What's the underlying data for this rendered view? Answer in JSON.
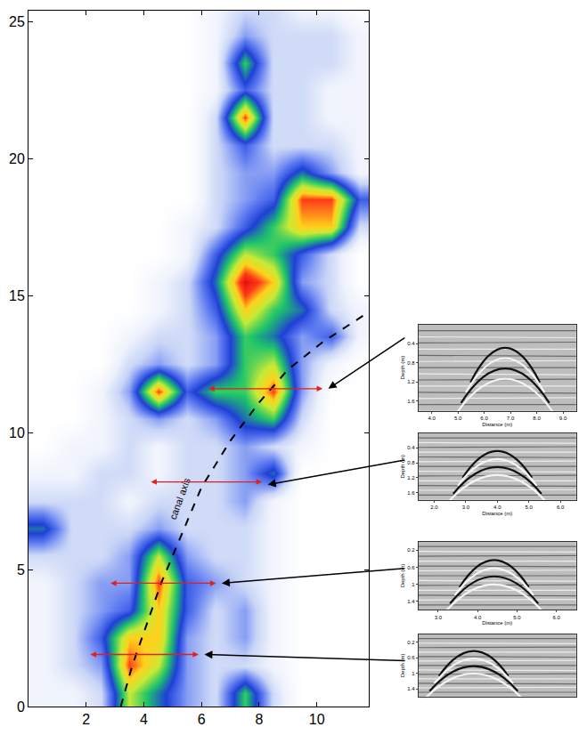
{
  "chart_data": [
    {
      "type": "heatmap",
      "xlim": [
        0,
        11.8
      ],
      "ylim": [
        0,
        25.4
      ],
      "xticks": [
        2,
        4,
        6,
        8,
        10
      ],
      "yticks": [
        0,
        5,
        10,
        15,
        20,
        25
      ],
      "zlim": [
        0,
        1
      ],
      "x": [
        0.5,
        1.5,
        2.5,
        3.5,
        4.5,
        5.5,
        6.5,
        7.5,
        8.5,
        9.5,
        10.5,
        11.5
      ],
      "y": [
        0.5,
        1.5,
        2.5,
        3.5,
        4.5,
        5.5,
        6.5,
        7.5,
        8.5,
        9.5,
        10.5,
        11.5,
        12.5,
        13.5,
        14.5,
        15.5,
        16.5,
        17.5,
        18.5,
        19.5,
        20.5,
        21.5,
        22.5,
        23.5,
        24.5,
        25.5
      ],
      "z": [
        [
          0.1,
          0.1,
          0.2,
          0.7,
          0.5,
          0.3,
          0.2,
          0.6,
          0.2,
          0,
          0,
          0
        ],
        [
          0.1,
          0.2,
          0.3,
          0.9,
          0.7,
          0.3,
          0.2,
          0.2,
          0.1,
          0,
          0,
          0
        ],
        [
          0.1,
          0.2,
          0.4,
          0.8,
          0.8,
          0.3,
          0.2,
          0.3,
          0.1,
          0,
          0,
          0
        ],
        [
          0.1,
          0.2,
          0.3,
          0.4,
          0.8,
          0.4,
          0.2,
          0.3,
          0.1,
          0,
          0,
          0
        ],
        [
          0.1,
          0.2,
          0.3,
          0.3,
          0.9,
          0.4,
          0.3,
          0.2,
          0.1,
          0,
          0,
          0
        ],
        [
          0.2,
          0.2,
          0.2,
          0.3,
          0.7,
          0.3,
          0.2,
          0.2,
          0.1,
          0,
          0,
          0
        ],
        [
          0.5,
          0.2,
          0.2,
          0.2,
          0.3,
          0.2,
          0.2,
          0.2,
          0.1,
          0,
          0,
          0
        ],
        [
          0.2,
          0.2,
          0.2,
          0.1,
          0.2,
          0.2,
          0.2,
          0.3,
          0.1,
          0,
          0,
          0
        ],
        [
          0.1,
          0.1,
          0.2,
          0.2,
          0.1,
          0.2,
          0.2,
          0.3,
          0.5,
          0,
          0,
          0
        ],
        [
          0,
          0.1,
          0.1,
          0.2,
          0.1,
          0.2,
          0.2,
          0.3,
          0.2,
          0.1,
          0,
          0
        ],
        [
          0,
          0,
          0.1,
          0.2,
          0.3,
          0.2,
          0.3,
          0.5,
          0.6,
          0.2,
          0,
          0
        ],
        [
          0,
          0,
          0.1,
          0.3,
          0.9,
          0.4,
          0.6,
          0.6,
          0.9,
          0.3,
          0,
          0
        ],
        [
          0,
          0,
          0,
          0.2,
          0.3,
          0.2,
          0.3,
          0.6,
          0.7,
          0.3,
          0.1,
          0
        ],
        [
          0,
          0,
          0,
          0.1,
          0.2,
          0.2,
          0.3,
          0.6,
          0.5,
          0.3,
          0.4,
          0.1
        ],
        [
          0,
          0,
          0,
          0,
          0.1,
          0.2,
          0.4,
          0.8,
          0.6,
          0.5,
          0.2,
          0.1
        ],
        [
          0,
          0,
          0,
          0,
          0.1,
          0.2,
          0.5,
          1.0,
          0.8,
          0.3,
          0.2,
          0
        ],
        [
          0,
          0,
          0,
          0,
          0,
          0.1,
          0.4,
          0.7,
          0.6,
          0.4,
          0.2,
          0
        ],
        [
          0,
          0,
          0,
          0,
          0,
          0.1,
          0.2,
          0.4,
          0.6,
          0.8,
          0.8,
          0.2
        ],
        [
          0,
          0,
          0,
          0,
          0,
          0,
          0.2,
          0.3,
          0.4,
          0.9,
          0.9,
          0.4
        ],
        [
          0,
          0,
          0,
          0,
          0,
          0,
          0.2,
          0.3,
          0.3,
          0.5,
          0.3,
          0.1
        ],
        [
          0,
          0,
          0,
          0,
          0,
          0,
          0.2,
          0.4,
          0.2,
          0.2,
          0.2,
          0.1
        ],
        [
          0,
          0,
          0,
          0,
          0,
          0,
          0.2,
          0.9,
          0.2,
          0.2,
          0.1,
          0.1
        ],
        [
          0,
          0,
          0,
          0,
          0,
          0,
          0.1,
          0.4,
          0.2,
          0.2,
          0.1,
          0.1
        ],
        [
          0,
          0,
          0,
          0,
          0,
          0,
          0.1,
          0.6,
          0.2,
          0.2,
          0.2,
          0.1
        ],
        [
          0,
          0,
          0,
          0,
          0,
          0,
          0.1,
          0.3,
          0.2,
          0.2,
          0.2,
          0.1
        ],
        [
          0,
          0,
          0,
          0,
          0,
          0,
          0.1,
          0.2,
          0.2,
          0.1,
          0.1,
          0
        ]
      ],
      "canal_axis": {
        "label": "canal axis",
        "x": [
          3.2,
          3.6,
          4.1,
          4.6,
          5.2,
          6.0,
          7.0,
          8.0,
          9.0,
          10.2,
          11.8
        ],
        "y": [
          0,
          1.5,
          3,
          4.5,
          6,
          8,
          9.7,
          11.1,
          12.3,
          13.3,
          14.4
        ]
      },
      "profiles": [
        {
          "y": 11.6,
          "x": [
            6.2,
            10.2
          ],
          "arrow": [
            10.4,
            11.6
          ]
        },
        {
          "y": 8.2,
          "x": [
            4.2,
            8.1
          ],
          "arrow": [
            8.3,
            8.1
          ]
        },
        {
          "y": 4.5,
          "x": [
            2.8,
            6.5
          ],
          "arrow": [
            6.7,
            4.5
          ]
        },
        {
          "y": 1.9,
          "x": [
            2.1,
            5.9
          ],
          "arrow": [
            6.1,
            1.9
          ]
        }
      ]
    },
    {
      "type": "radargram",
      "xlabel": "Distance (m)",
      "ylabel": "Depth (m)",
      "xlim": [
        3.5,
        9.5
      ],
      "ylim": [
        0,
        1.8
      ],
      "xticks": [
        {
          "value": 4,
          "label": "4.0"
        },
        {
          "value": 5,
          "label": "5.0"
        },
        {
          "value": 6,
          "label": "6.0"
        },
        {
          "value": 7,
          "label": "7.0"
        },
        {
          "value": 8,
          "label": "8.0"
        },
        {
          "value": 9,
          "label": "9.0"
        }
      ],
      "yticks": [
        0.4,
        0.8,
        1.2,
        1.6
      ]
    },
    {
      "type": "radargram",
      "xlabel": "Distance (m)",
      "ylabel": "Depth (m)",
      "xlim": [
        1.5,
        6.5
      ],
      "ylim": [
        0,
        1.8
      ],
      "xticks": [
        {
          "value": 2,
          "label": "2.0"
        },
        {
          "value": 3,
          "label": "3.0"
        },
        {
          "value": 4,
          "label": "4.0"
        },
        {
          "value": 5,
          "label": "5.0"
        },
        {
          "value": 6,
          "label": "6.0"
        }
      ],
      "yticks": [
        0.4,
        0.8,
        1.2,
        1.6
      ]
    },
    {
      "type": "radargram",
      "xlabel": "Distance (m)",
      "ylabel": "Depth (m)",
      "xlim": [
        2.5,
        6.5
      ],
      "ylim": [
        0,
        1.6
      ],
      "xticks": [
        {
          "value": 3,
          "label": "3.0"
        },
        {
          "value": 4,
          "label": "4.0"
        },
        {
          "value": 5,
          "label": "5.0"
        },
        {
          "value": 6,
          "label": "6.0"
        }
      ],
      "yticks": [
        0.2,
        0.6,
        1.0,
        1.4
      ]
    },
    {
      "type": "radargram",
      "ylabel": "Depth (m)",
      "tick_labels": "y",
      "xlim": [
        2.5,
        6.5
      ],
      "ylim": [
        0,
        1.6
      ],
      "yticks": [
        0.2,
        0.6,
        1.0,
        1.4
      ]
    }
  ]
}
